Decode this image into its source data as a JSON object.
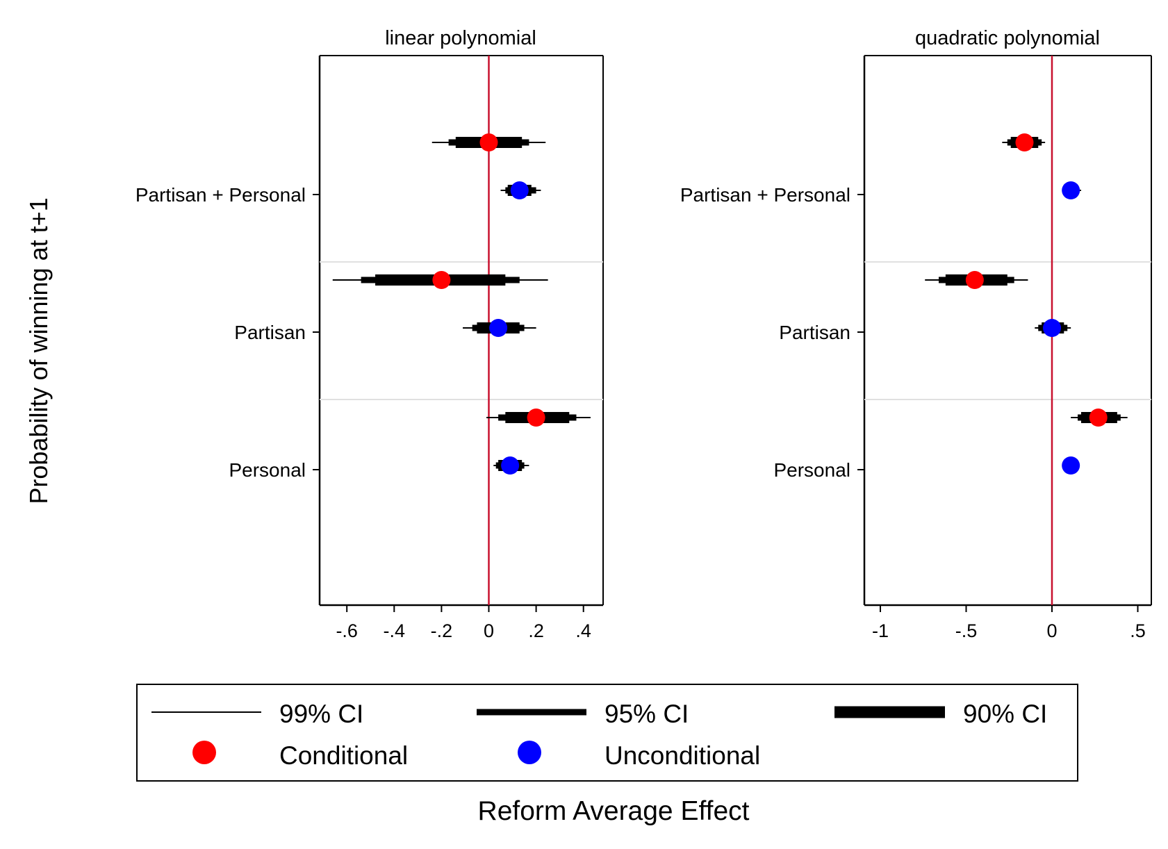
{
  "figure": {
    "ylabel": "Probability of winning at t+1",
    "xlabel": "Reform Average Effect"
  },
  "legend": {
    "ci99": "99% CI",
    "ci95": "95% CI",
    "ci90": "90% CI",
    "conditional": "Conditional",
    "unconditional": "Unconditional"
  },
  "colors": {
    "conditional": "#ff0000",
    "unconditional": "#0000ff",
    "zero_line": "#c8102e",
    "separator": "#e0e0e0"
  },
  "chart_data": [
    {
      "type": "scatter",
      "title": "linear polynomial",
      "xlim": [
        -0.72,
        0.48
      ],
      "ticks": [
        {
          "value": -0.6,
          "label": "-.6"
        },
        {
          "value": -0.4,
          "label": "-.4"
        },
        {
          "value": -0.2,
          "label": "-.2"
        },
        {
          "value": 0,
          "label": "0"
        },
        {
          "value": 0.2,
          "label": ".2"
        },
        {
          "value": 0.4,
          "label": ".4"
        }
      ],
      "reference_line": 0,
      "groups": [
        "Partisan + Personal",
        "Partisan",
        "Personal"
      ],
      "series": [
        {
          "name": "Conditional",
          "estimates": [
            {
              "group": "Partisan + Personal",
              "estimate": 0.0,
              "ci99": [
                -0.24,
                0.24
              ],
              "ci95": [
                -0.17,
                0.17
              ],
              "ci90": [
                -0.14,
                0.14
              ]
            },
            {
              "group": "Partisan",
              "estimate": -0.2,
              "ci99": [
                -0.66,
                0.25
              ],
              "ci95": [
                -0.54,
                0.13
              ],
              "ci90": [
                -0.48,
                0.07
              ]
            },
            {
              "group": "Personal",
              "estimate": 0.2,
              "ci99": [
                -0.01,
                0.43
              ],
              "ci95": [
                0.04,
                0.37
              ],
              "ci90": [
                0.07,
                0.34
              ]
            }
          ]
        },
        {
          "name": "Unconditional",
          "estimates": [
            {
              "group": "Partisan + Personal",
              "estimate": 0.13,
              "ci99": [
                0.05,
                0.22
              ],
              "ci95": [
                0.07,
                0.2
              ],
              "ci90": [
                0.08,
                0.18
              ]
            },
            {
              "group": "Partisan",
              "estimate": 0.04,
              "ci99": [
                -0.11,
                0.2
              ],
              "ci95": [
                -0.07,
                0.15
              ],
              "ci90": [
                -0.05,
                0.13
              ]
            },
            {
              "group": "Personal",
              "estimate": 0.09,
              "ci99": [
                0.02,
                0.17
              ],
              "ci95": [
                0.03,
                0.15
              ],
              "ci90": [
                0.04,
                0.14
              ]
            }
          ]
        }
      ]
    },
    {
      "type": "scatter",
      "title": "quadratic polynomial",
      "xlim": [
        -1.1,
        0.58
      ],
      "ticks": [
        {
          "value": -1,
          "label": "-1"
        },
        {
          "value": -0.5,
          "label": "-.5"
        },
        {
          "value": 0,
          "label": "0"
        },
        {
          "value": 0.5,
          "label": ".5"
        }
      ],
      "reference_line": 0,
      "groups": [
        "Partisan + Personal",
        "Partisan",
        "Personal"
      ],
      "series": [
        {
          "name": "Conditional",
          "estimates": [
            {
              "group": "Partisan + Personal",
              "estimate": -0.16,
              "ci99": [
                -0.29,
                -0.04
              ],
              "ci95": [
                -0.26,
                -0.06
              ],
              "ci90": [
                -0.24,
                -0.08
              ]
            },
            {
              "group": "Partisan",
              "estimate": -0.45,
              "ci99": [
                -0.74,
                -0.14
              ],
              "ci95": [
                -0.66,
                -0.22
              ],
              "ci90": [
                -0.62,
                -0.26
              ]
            },
            {
              "group": "Personal",
              "estimate": 0.27,
              "ci99": [
                0.11,
                0.44
              ],
              "ci95": [
                0.15,
                0.4
              ],
              "ci90": [
                0.17,
                0.38
              ]
            }
          ]
        },
        {
          "name": "Unconditional",
          "estimates": [
            {
              "group": "Partisan + Personal",
              "estimate": 0.11,
              "ci99": [
                0.07,
                0.17
              ],
              "ci95": [
                0.08,
                0.15
              ],
              "ci90": [
                0.09,
                0.14
              ]
            },
            {
              "group": "Partisan",
              "estimate": 0.0,
              "ci99": [
                -0.1,
                0.11
              ],
              "ci95": [
                -0.08,
                0.09
              ],
              "ci90": [
                -0.06,
                0.07
              ]
            },
            {
              "group": "Personal",
              "estimate": 0.11,
              "ci99": [
                0.07,
                0.16
              ],
              "ci95": [
                0.08,
                0.15
              ],
              "ci90": [
                0.09,
                0.14
              ]
            }
          ]
        }
      ]
    }
  ]
}
